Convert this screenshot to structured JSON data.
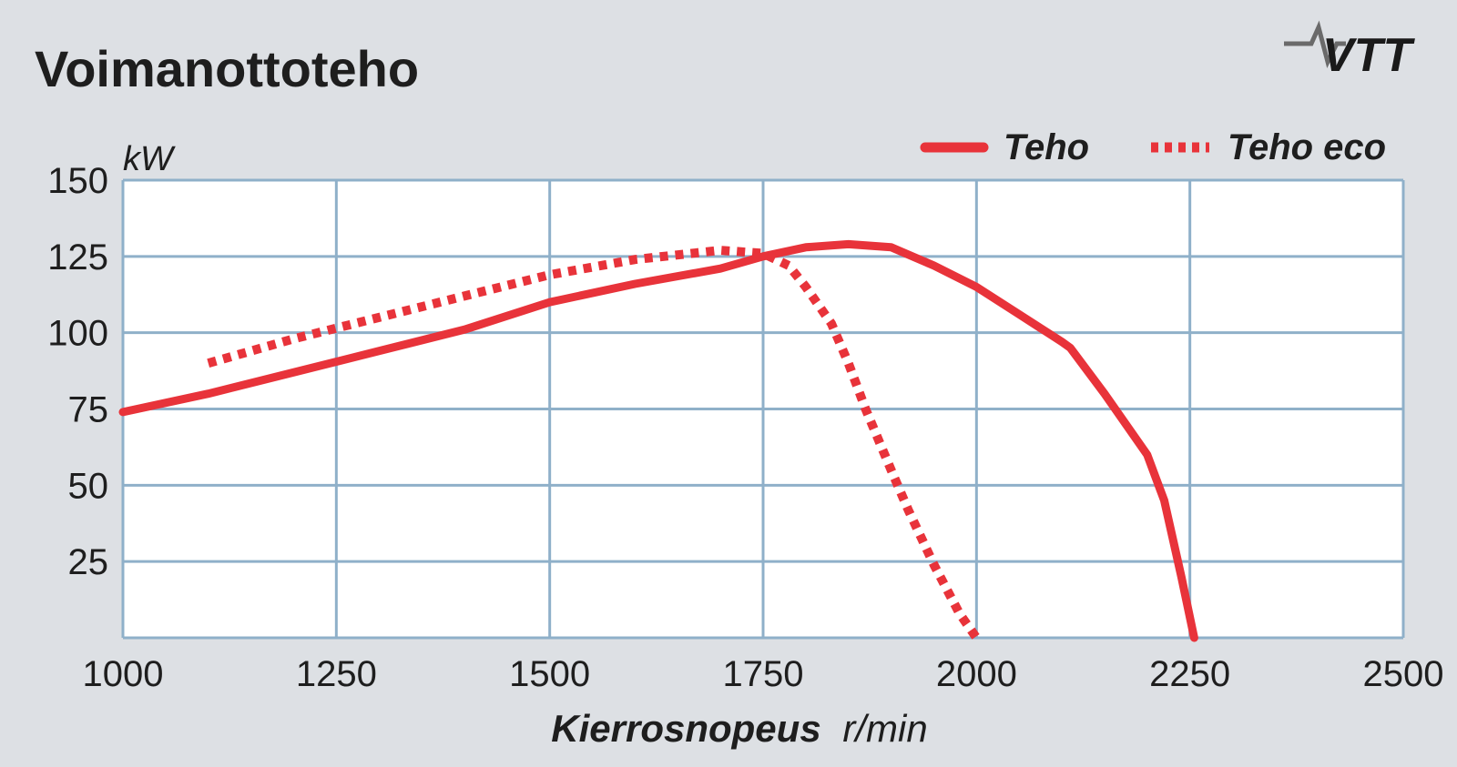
{
  "logo": {
    "text": "VTT"
  },
  "chart_data": {
    "type": "line",
    "title": "Voimanottoteho",
    "ylabel": "kW",
    "xlabel_bold": "Kierrosnopeus",
    "xlabel_unit": "r/min",
    "xlim": [
      1000,
      2500
    ],
    "ylim": [
      0,
      150
    ],
    "x_ticks": [
      1000,
      1250,
      1500,
      1750,
      2000,
      2250,
      2500
    ],
    "y_ticks": [
      25,
      50,
      75,
      100,
      125,
      150
    ],
    "grid": true,
    "legend_position": "top-right",
    "colors": {
      "line": "#e8333a",
      "grid": "#8fb0c9",
      "plot_bg": "#ffffff",
      "page_bg": "#dde0e4"
    },
    "series": [
      {
        "name": "Teho",
        "style": "solid",
        "points": [
          [
            1000,
            74
          ],
          [
            1100,
            80
          ],
          [
            1200,
            87
          ],
          [
            1300,
            94
          ],
          [
            1400,
            101
          ],
          [
            1500,
            110
          ],
          [
            1600,
            116
          ],
          [
            1700,
            121
          ],
          [
            1750,
            125
          ],
          [
            1800,
            128
          ],
          [
            1850,
            129
          ],
          [
            1900,
            128
          ],
          [
            1950,
            122
          ],
          [
            2000,
            115
          ],
          [
            2050,
            106
          ],
          [
            2100,
            97
          ],
          [
            2110,
            95
          ],
          [
            2150,
            80
          ],
          [
            2200,
            60
          ],
          [
            2220,
            45
          ],
          [
            2240,
            20
          ],
          [
            2255,
            0
          ]
        ]
      },
      {
        "name": "Teho eco",
        "style": "dotted",
        "points": [
          [
            1100,
            90
          ],
          [
            1200,
            98
          ],
          [
            1300,
            105
          ],
          [
            1400,
            112
          ],
          [
            1500,
            119
          ],
          [
            1600,
            124
          ],
          [
            1700,
            127
          ],
          [
            1750,
            126
          ],
          [
            1780,
            122
          ],
          [
            1800,
            115
          ],
          [
            1830,
            103
          ],
          [
            1850,
            90
          ],
          [
            1870,
            75
          ],
          [
            1900,
            55
          ],
          [
            1920,
            42
          ],
          [
            1950,
            24
          ],
          [
            1980,
            8
          ],
          [
            2000,
            0
          ]
        ]
      }
    ]
  }
}
